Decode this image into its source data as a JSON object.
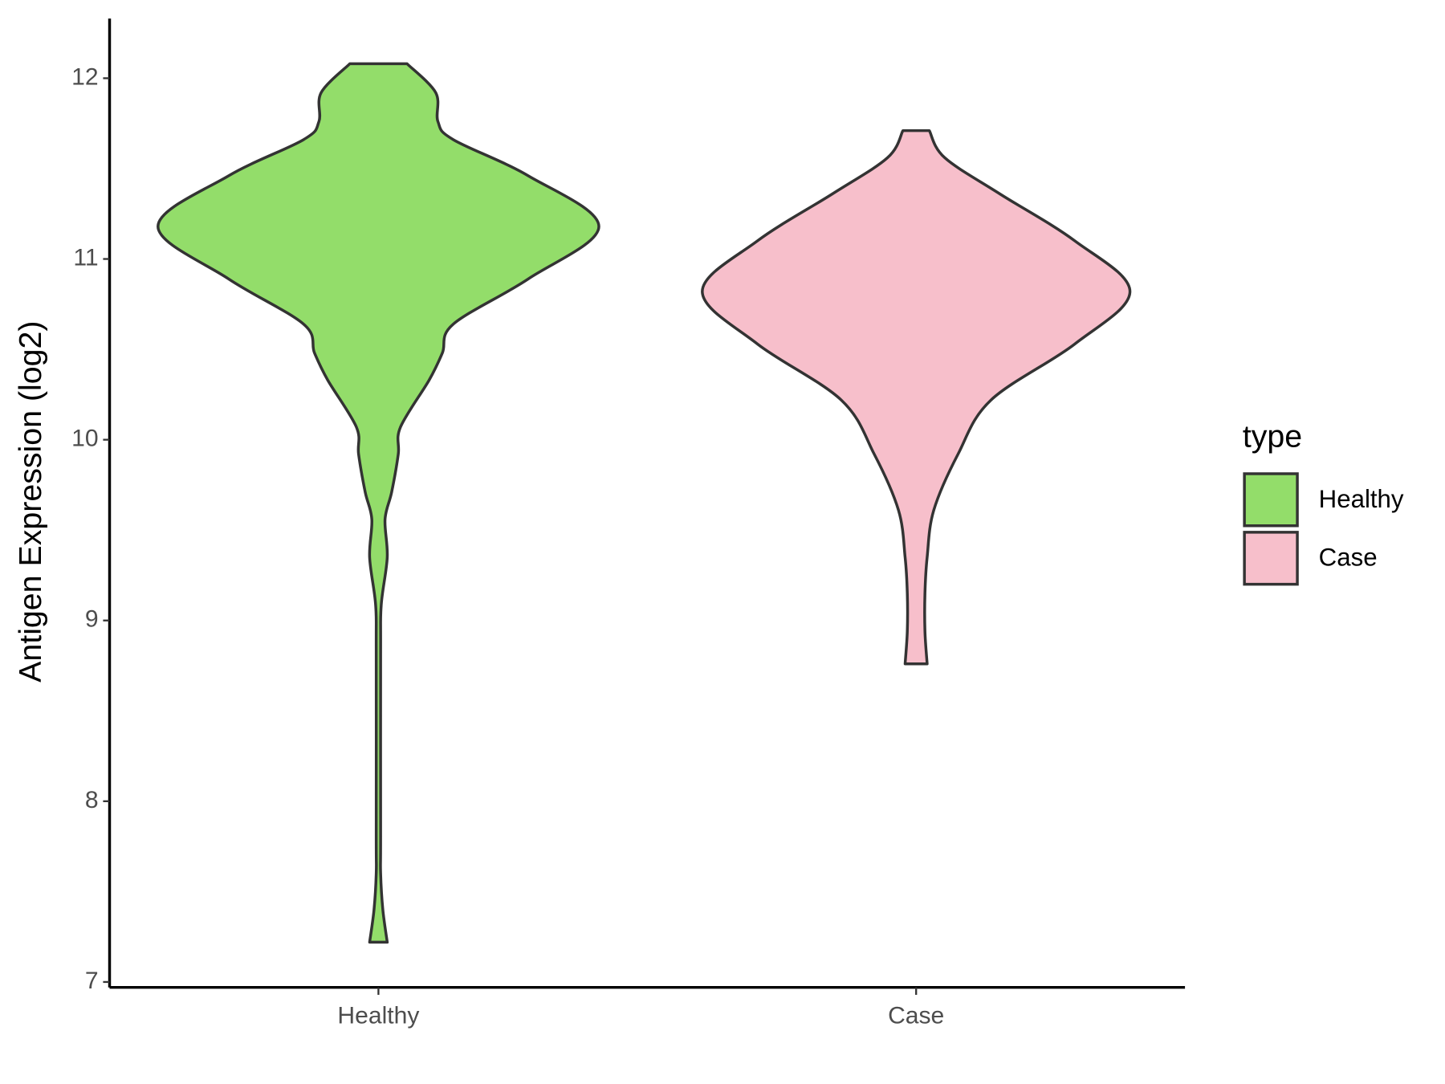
{
  "chart_data": {
    "type": "violin",
    "y_label": "Antigen Expression (log2)",
    "categories": [
      "Healthy",
      "Case"
    ],
    "ylim": [
      6.97,
      12.33
    ],
    "yticks": [
      7,
      8,
      9,
      10,
      11,
      12
    ],
    "legend_title": "type",
    "legend_position": "right",
    "series": [
      {
        "name": "Healthy",
        "color": "#93dd6a",
        "y": [
          12.08,
          11.92,
          11.76,
          11.66,
          11.46,
          11.18,
          10.89,
          10.64,
          10.48,
          10.33,
          10.07,
          9.92,
          9.71,
          9.56,
          9.35,
          9.09,
          8.84,
          7.81,
          7.6,
          7.4,
          7.22
        ],
        "density": [
          0.13,
          0.26,
          0.27,
          0.34,
          0.68,
          1.0,
          0.68,
          0.34,
          0.29,
          0.23,
          0.1,
          0.09,
          0.06,
          0.03,
          0.04,
          0.013,
          0.01,
          0.01,
          0.01,
          0.02,
          0.04
        ]
      },
      {
        "name": "Case",
        "color": "#f7bfcb",
        "y": [
          11.71,
          11.56,
          11.36,
          11.1,
          10.82,
          10.53,
          10.22,
          9.92,
          9.61,
          9.35,
          9.15,
          8.94,
          8.76
        ],
        "density": [
          0.06,
          0.13,
          0.38,
          0.72,
          0.97,
          0.72,
          0.34,
          0.19,
          0.08,
          0.05,
          0.04,
          0.04,
          0.05
        ]
      }
    ]
  }
}
